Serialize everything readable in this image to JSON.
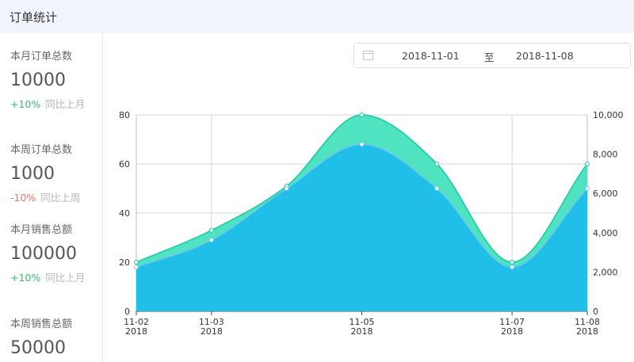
{
  "header": {
    "title": "订单统计"
  },
  "stats": [
    {
      "label": "本月订单总数",
      "value": "10000",
      "change": "+10%",
      "change_type": "up",
      "compare": "同比上月"
    },
    {
      "label": "本周订单总数",
      "value": "1000",
      "change": "-10%",
      "change_type": "down",
      "compare": "同比上周"
    },
    {
      "label": "本月销售总额",
      "value": "100000",
      "change": "+10%",
      "change_type": "up",
      "compare": "同比上月"
    },
    {
      "label": "本周销售总额",
      "value": "50000"
    }
  ],
  "date_range": {
    "start": "2018-11-01",
    "separator": "至",
    "end": "2018-11-08",
    "icon": "calendar-icon"
  },
  "chart_data": {
    "type": "area",
    "x": [
      "2018-11-02",
      "2018-11-03",
      "2018-11-04",
      "2018-11-05",
      "2018-11-06",
      "2018-11-07",
      "2018-11-08"
    ],
    "xtick_labels": [
      {
        "day": "11-02",
        "year": "2018"
      },
      {
        "day": "11-03",
        "year": "2018"
      },
      {
        "day": "11-05",
        "year": "2018"
      },
      {
        "day": "11-07",
        "year": "2018"
      },
      {
        "day": "11-08",
        "year": "2018"
      }
    ],
    "y_left": {
      "min": 0,
      "max": 80,
      "ticks": [
        "0",
        "20",
        "40",
        "60",
        "80"
      ]
    },
    "y_right": {
      "min": 0,
      "max": 10000,
      "ticks": [
        "0",
        "2,000",
        "4,000",
        "6,000",
        "8,000",
        "10,000"
      ]
    },
    "series": [
      {
        "axis": "left",
        "color": "#4fe3c1",
        "stroke": "#16c9a0",
        "values": [
          20,
          33,
          51,
          80,
          60,
          20,
          60
        ]
      },
      {
        "axis": "right",
        "color": "#1fbfe7",
        "stroke": "#6ec6f0",
        "values": [
          2250,
          3625,
          6250,
          8500,
          6250,
          2250,
          6250
        ]
      }
    ],
    "grid": true
  }
}
